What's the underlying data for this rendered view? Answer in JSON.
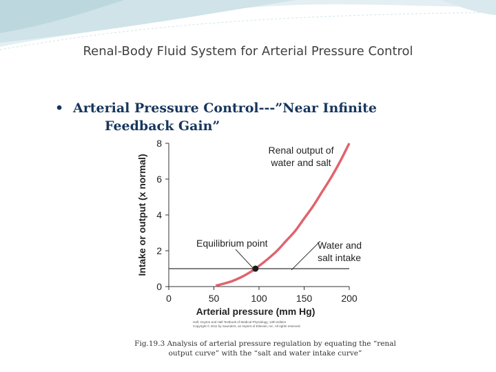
{
  "slide": {
    "title": "Renal-Body Fluid System for Arterial Pressure Control",
    "bullet_line1": "Arterial Pressure Control---”Near Infinite",
    "bullet_line2": "Feedback Gain”",
    "bullet_symbol": "•",
    "caption_line1": "Fig.19.3  Analysis of arterial pressure regulation by equating the “renal",
    "caption_line2": "output curve” with the “salt and water intake curve”",
    "colors": {
      "title": "#404040",
      "bullet": "#17365d",
      "wave": "#cfe3e8"
    }
  },
  "chart_data": {
    "type": "line",
    "xlabel": "Arterial pressure (mm Hg)",
    "ylabel": "Intake or output (x normal)",
    "xlim": [
      0,
      200
    ],
    "ylim": [
      0,
      8
    ],
    "xticks": [
      "0",
      "50",
      "100",
      "150",
      "200"
    ],
    "yticks": [
      "0",
      "2",
      "4",
      "6",
      "8"
    ],
    "grid": false,
    "series": [
      {
        "name": "Renal output of water and salt",
        "color": "#e0636e",
        "x": [
          52,
          60,
          70,
          80,
          90,
          96,
          100,
          110,
          120,
          130,
          140,
          150,
          160,
          170,
          180,
          190,
          200
        ],
        "y": [
          0.05,
          0.15,
          0.3,
          0.52,
          0.8,
          1.0,
          1.15,
          1.55,
          2.0,
          2.55,
          3.1,
          3.8,
          4.5,
          5.3,
          6.1,
          7.0,
          8.0
        ]
      },
      {
        "name": "Water and salt intake",
        "color": "#333333",
        "x": [
          0,
          200
        ],
        "y": [
          1.0,
          1.0
        ]
      }
    ],
    "annotations": {
      "renal_label_line1": "Renal output of",
      "renal_label_line2": "water and salt",
      "intake_label_line1": "Water and",
      "intake_label_line2": "salt intake",
      "equilibrium_label": "Equilibrium point",
      "equilibrium_point": {
        "x": 96,
        "y": 1.0
      },
      "copyright_line1": "Hall: Guyton and Hall Textbook of Medical Physiology, 12th Edition",
      "copyright_line2": "Copyright © 2011 by Saunders, an imprint of Elsevier, Inc. All rights reserved."
    }
  }
}
